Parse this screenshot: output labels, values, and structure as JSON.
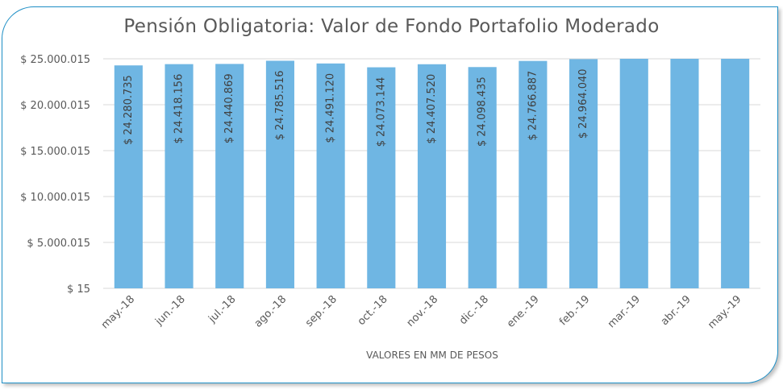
{
  "chart_data": {
    "type": "bar",
    "title": "Pensión Obligatoria: Valor de Fondo Portafolio Moderado",
    "xlabel": "VALORES EN MM DE PESOS",
    "ylabel": "",
    "categories": [
      "may.-18",
      "jun.-18",
      "jul.-18",
      "ago.-18",
      "sep.-18",
      "oct.-18",
      "nov.-18",
      "dic.-18",
      "ene.-19",
      "feb.-19",
      "mar.-19",
      "abr.-19",
      "may.-19"
    ],
    "values": [
      24280735,
      24418156,
      24440869,
      24785516,
      24491120,
      24073144,
      24407520,
      24098435,
      24766887,
      24964040,
      25000015,
      25000015,
      25000015
    ],
    "data_labels": [
      "$ 24.280.735",
      "$ 24.418.156",
      "$ 24.440.869",
      "$ 24.785.516",
      "$ 24.491.120",
      "$ 24.073.144",
      "$ 24.407.520",
      "$ 24.098.435",
      "$ 24.766.887",
      "$ 24.964.040",
      "",
      "",
      ""
    ],
    "ylim": [
      15,
      25000015
    ],
    "y_ticks": [
      15,
      5000015,
      10000015,
      15000015,
      20000015,
      25000015
    ],
    "y_tick_labels": [
      "$ 15",
      "$ 5.000.015",
      "$ 10.000.015",
      "$ 15.000.015",
      "$ 20.000.015",
      "$ 25.000.015"
    ],
    "grid": true,
    "legend": "none",
    "bar_color": "#6fb6e3",
    "grid_color": "#d9d9d9"
  }
}
